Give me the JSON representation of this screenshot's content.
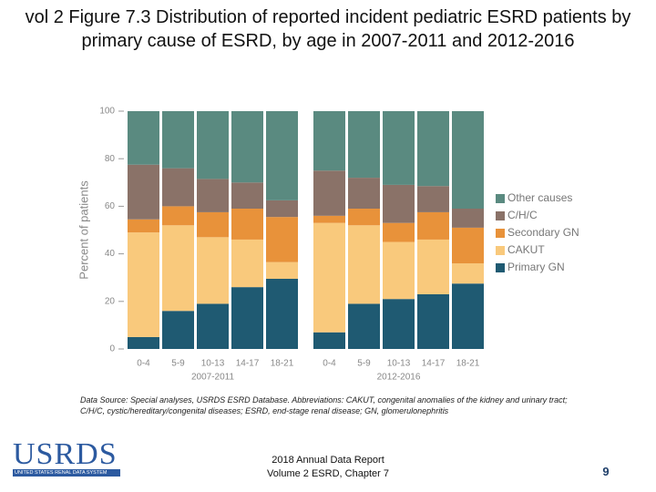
{
  "chart_data": {
    "type": "stacked-bar",
    "title": "vol 2 Figure 7.3 Distribution of reported incident pediatric ESRD patients by primary cause of ESRD, by age in 2007-2011 and 2012-2016",
    "ylabel": "Percent of patients",
    "categories": [
      "0-4",
      "5-9",
      "10-13",
      "14-17",
      "18-21",
      "0-4",
      "5-9",
      "10-13",
      "14-17",
      "18-21"
    ],
    "groups": [
      "2007-2011",
      "2012-2016"
    ],
    "ylim": [
      0,
      100
    ],
    "yticks": [
      0,
      20,
      40,
      60,
      80,
      100
    ],
    "legend": "right",
    "series": [
      {
        "name": "Primary GN",
        "color": "#1f5a72",
        "values": [
          5,
          16,
          19,
          26,
          29.5,
          7,
          19,
          21,
          23,
          27.5
        ]
      },
      {
        "name": "CAKUT",
        "color": "#f9c97c",
        "values": [
          44,
          36,
          28,
          20,
          7,
          46,
          33,
          24,
          23,
          8.5
        ]
      },
      {
        "name": "Secondary GN",
        "color": "#e8923a",
        "values": [
          5.5,
          8,
          10.5,
          13,
          19,
          3,
          7,
          8,
          11.5,
          15
        ]
      },
      {
        "name": "C/H/C",
        "color": "#8a7268",
        "values": [
          23,
          16,
          14,
          11,
          7,
          19,
          13,
          16,
          11,
          8
        ]
      },
      {
        "name": "Other causes",
        "color": "#5a8a80",
        "values": [
          22.5,
          24,
          28.5,
          30,
          37.5,
          25,
          28,
          31,
          31.5,
          41
        ]
      }
    ]
  },
  "slide": {
    "source": "Data Source: Special analyses, USRDS ESRD Database. Abbreviations: CAKUT, congenital anomalies of the kidney and urinary tract; C/H/C, cystic/hereditary/congenital diseases; ESRD, end-stage renal disease; GN, glomerulonephritis",
    "logo": "USRDS",
    "logo_subtitle": "UNITED STATES RENAL DATA SYSTEM",
    "footer_line1": "2018 Annual Data Report",
    "footer_line2": "Volume 2 ESRD, Chapter 7",
    "page_number": "9"
  }
}
